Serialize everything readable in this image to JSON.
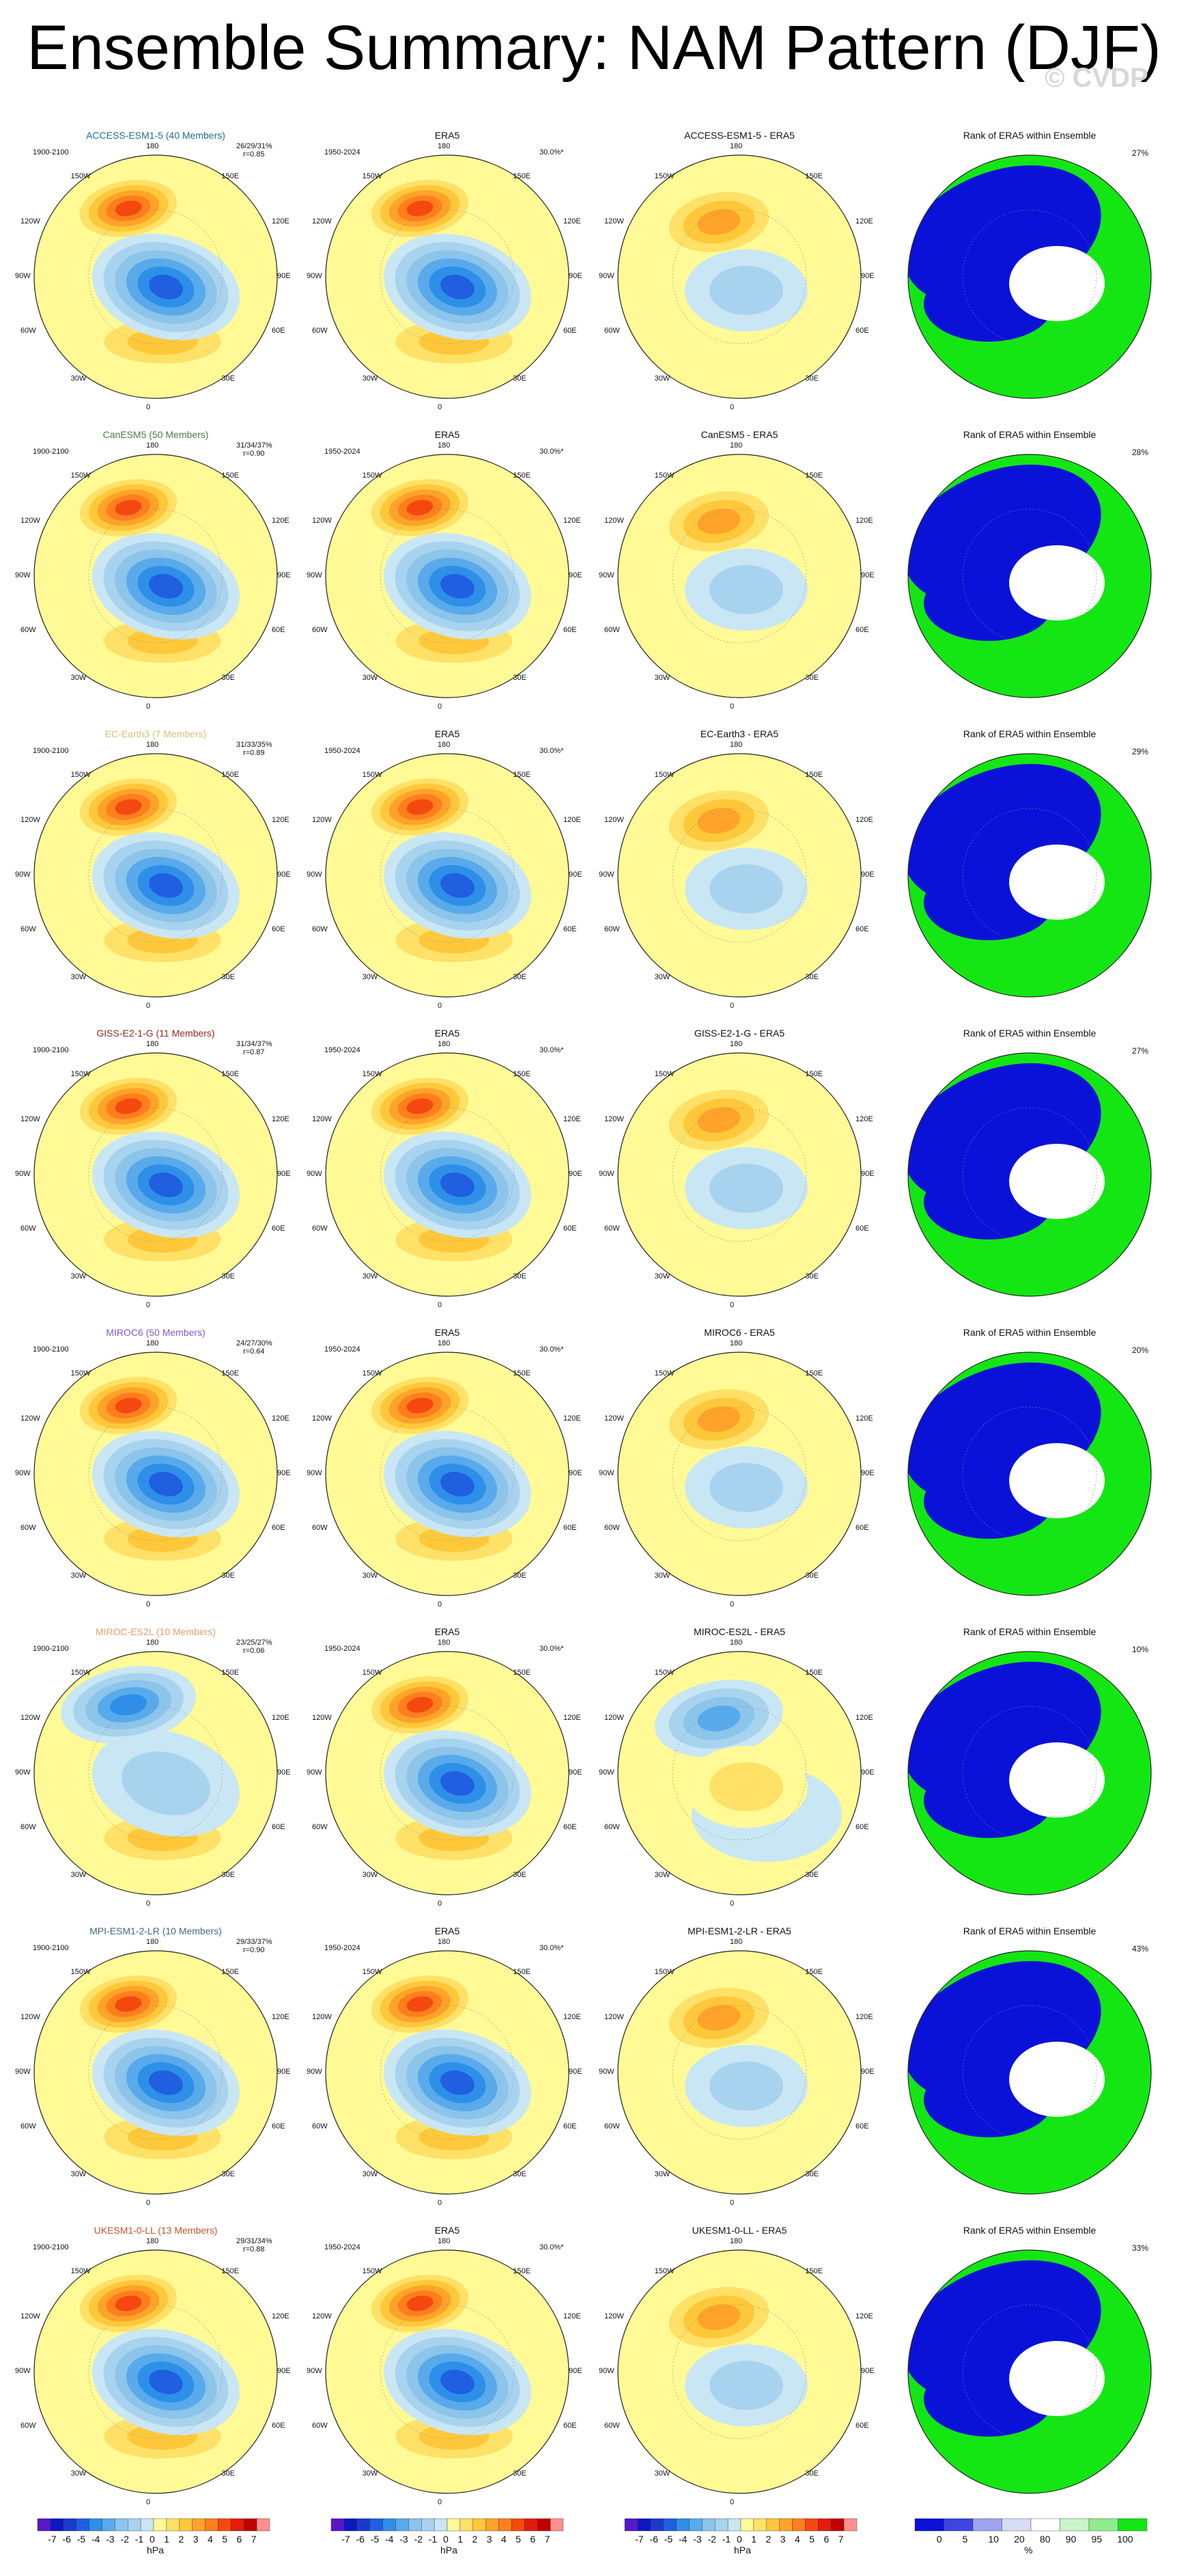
{
  "title": "Ensemble Summary: NAM Pattern (DJF)",
  "watermark": "© CVDP",
  "colors": {
    "bg": "#fffa96",
    "blues": [
      "#c9e6f4",
      "#a8d3ee",
      "#8cc4ea",
      "#58aaeb",
      "#2e8fe8",
      "#1f5fe0",
      "#1b3acb",
      "#0d17c0",
      "#5a16c9"
    ],
    "warms": [
      "#fffa96",
      "#ffe168",
      "#ffc83a",
      "#ffa32a",
      "#ff7f1c",
      "#f5480f",
      "#e61a0a",
      "#c10000",
      "#ff8f8f"
    ],
    "rank": {
      "blue": "#0b12d8",
      "green": "#14e614",
      "white": "#ffffff",
      "pale": "#d6dcf5"
    }
  },
  "rows": [
    {
      "model": "ACCESS-ESM1-5 (40 Members)",
      "model_color": "#1c6f8c",
      "diff_title": "ACCESS-ESM1-5 - ERA5",
      "stats1": "26/29/31%",
      "stats2": "r=0.85",
      "rank_pct": "27%",
      "pattern": "pos"
    },
    {
      "model": "CanESM5 (50 Members)",
      "model_color": "#4a7c3c",
      "diff_title": "CanESM5 - ERA5",
      "stats1": "31/34/37%",
      "stats2": "r=0.90",
      "rank_pct": "28%",
      "pattern": "pos"
    },
    {
      "model": "EC-Earth3 (7 Members)",
      "model_color": "#d7c27a",
      "diff_title": "EC-Earth3 - ERA5",
      "stats1": "31/33/35%",
      "stats2": "r=0.89",
      "rank_pct": "29%",
      "pattern": "pos"
    },
    {
      "model": "GISS-E2-1-G (11 Members)",
      "model_color": "#8a2a1a",
      "diff_title": "GISS-E2-1-G - ERA5",
      "stats1": "31/34/37%",
      "stats2": "r=0.87",
      "rank_pct": "27%",
      "pattern": "pos"
    },
    {
      "model": "MIROC6 (50 Members)",
      "model_color": "#7b59c7",
      "diff_title": "MIROC6 - ERA5",
      "stats1": "24/27/30%",
      "stats2": "r=0.64",
      "rank_pct": "20%",
      "pattern": "pos"
    },
    {
      "model": "MIROC-ES2L (10 Members)",
      "model_color": "#e0a070",
      "diff_title": "MIROC-ES2L - ERA5",
      "stats1": "23/25/27%",
      "stats2": "r=0.06",
      "rank_pct": "10%",
      "pattern": "neg"
    },
    {
      "model": "MPI-ESM1-2-LR (10 Members)",
      "model_color": "#3d6d7a",
      "diff_title": "MPI-ESM1-2-LR - ERA5",
      "stats1": "29/33/37%",
      "stats2": "r=0.90",
      "rank_pct": "43%",
      "pattern": "pos"
    },
    {
      "model": "UKESM1-0-LL (13 Members)",
      "model_color": "#c7542a",
      "diff_title": "UKESM1-0-LL - ERA5",
      "stats1": "29/31/34%",
      "stats2": "r=0.88",
      "rank_pct": "33%",
      "pattern": "pos"
    }
  ],
  "era5": {
    "title": "ERA5",
    "years": "1950-2024",
    "pct": "30.0%*"
  },
  "model_years": "1900-2100",
  "rank_title": "Rank of ERA5 within Ensemble",
  "lon_labels": {
    "top": "180",
    "tl": "150W",
    "tr": "150E",
    "ul": "120W",
    "ur": "120E",
    "l": "90W",
    "r": "90E",
    "ll": "60W",
    "lr": "60E",
    "bl": "30W",
    "br": "30E",
    "bottom": "0"
  },
  "colorbar_hpa": {
    "ticks": [
      "-7",
      "-6",
      "-5",
      "-4",
      "-3",
      "-2",
      "-1",
      "0",
      "1",
      "2",
      "3",
      "4",
      "5",
      "6",
      "7"
    ],
    "units": "hPa"
  },
  "colorbar_rank": {
    "ticks": [
      "0",
      "5",
      "10",
      "20",
      "80",
      "90",
      "95",
      "100"
    ],
    "units": "%"
  }
}
